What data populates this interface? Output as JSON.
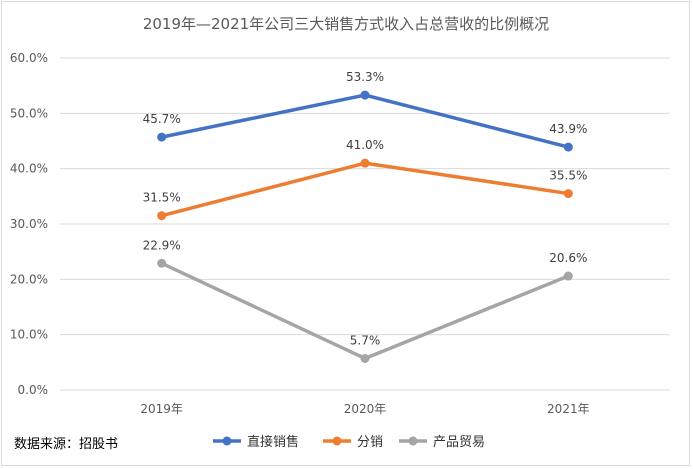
{
  "chart_data": {
    "type": "line",
    "title": "2019年—2021年公司三大销售方式收入占总营收的比例概况",
    "categories": [
      "2019年",
      "2020年",
      "2021年"
    ],
    "y_ticks": [
      "0.0%",
      "10.0%",
      "20.0%",
      "30.0%",
      "40.0%",
      "50.0%",
      "60.0%"
    ],
    "ylim": [
      0,
      60
    ],
    "grid": true,
    "legend_position": "bottom",
    "series": [
      {
        "name": "直接销售",
        "color": "#4472c4",
        "values": [
          45.7,
          53.3,
          43.9
        ],
        "labels": [
          "45.7%",
          "53.3%",
          "43.9%"
        ]
      },
      {
        "name": "分销",
        "color": "#ed7d31",
        "values": [
          31.5,
          41.0,
          35.5
        ],
        "labels": [
          "31.5%",
          "41.0%",
          "35.5%"
        ]
      },
      {
        "name": "产品贸易",
        "color": "#a5a5a5",
        "values": [
          22.9,
          5.7,
          20.6
        ],
        "labels": [
          "22.9%",
          "5.7%",
          "20.6%"
        ]
      }
    ]
  },
  "source_note": "数据来源：招股书"
}
